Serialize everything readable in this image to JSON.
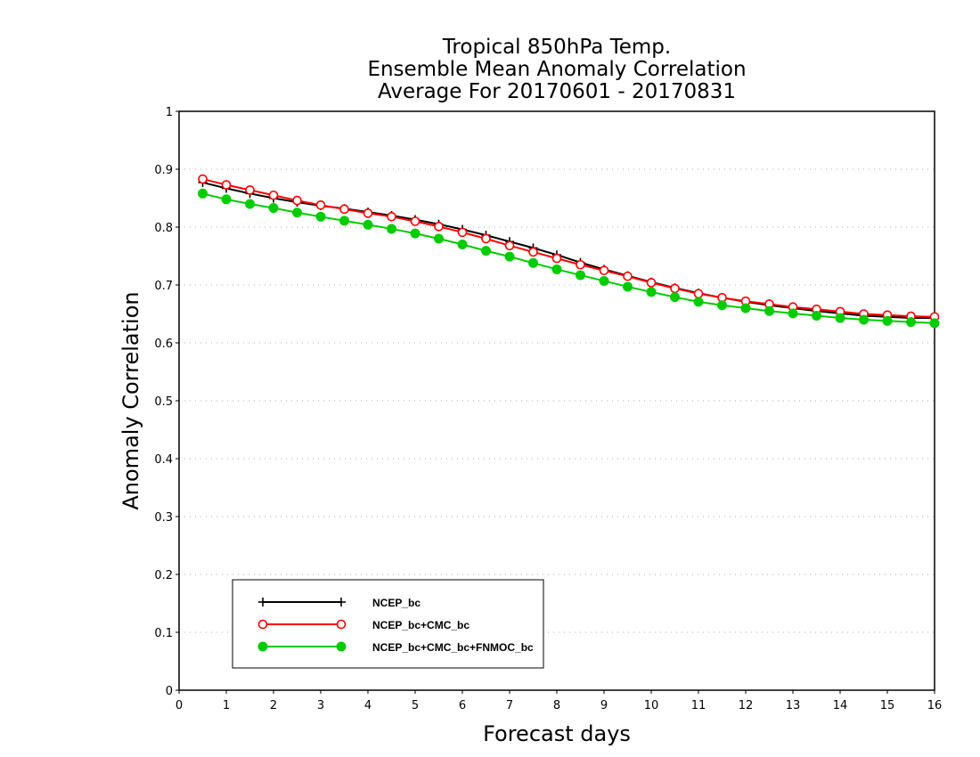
{
  "chart_data": {
    "type": "line",
    "title": [
      "Tropical 850hPa Temp.",
      "Ensemble Mean Anomaly Correlation",
      "Average For 20170601 - 20170831"
    ],
    "xlabel": "Forecast days",
    "ylabel": "Anomaly Correlation",
    "xlim": [
      0,
      16
    ],
    "ylim": [
      0,
      1
    ],
    "xticks": [
      "0",
      "1",
      "2",
      "3",
      "4",
      "5",
      "6",
      "7",
      "8",
      "9",
      "10",
      "11",
      "12",
      "13",
      "14",
      "15",
      "16"
    ],
    "yticks": [
      "0",
      "0.1",
      "0.2",
      "0.3",
      "0.4",
      "0.5",
      "0.6",
      "0.7",
      "0.8",
      "0.9",
      "1"
    ],
    "grid": "horizontal dotted",
    "legend_position": "bottom-left",
    "x": [
      0.5,
      1,
      1.5,
      2,
      2.5,
      3,
      3.5,
      4,
      4.5,
      5,
      5.5,
      6,
      6.5,
      7,
      7.5,
      8,
      8.5,
      9,
      9.5,
      10,
      10.5,
      11,
      11.5,
      12,
      12.5,
      13,
      13.5,
      14,
      14.5,
      15,
      15.5,
      16
    ],
    "series": [
      {
        "name": "NCEP_bc",
        "color": "#000000",
        "marker": "plus",
        "values": [
          0.877,
          0.867,
          0.858,
          0.85,
          0.843,
          0.837,
          0.832,
          0.826,
          0.82,
          0.813,
          0.805,
          0.796,
          0.786,
          0.775,
          0.764,
          0.752,
          0.739,
          0.727,
          0.716,
          0.705,
          0.695,
          0.686,
          0.678,
          0.671,
          0.665,
          0.66,
          0.655,
          0.651,
          0.647,
          0.645,
          0.643,
          0.643
        ]
      },
      {
        "name": "NCEP_bc+CMC_bc",
        "color": "#ff0000",
        "marker": "open-circle",
        "values": [
          0.883,
          0.873,
          0.864,
          0.855,
          0.846,
          0.838,
          0.831,
          0.824,
          0.818,
          0.81,
          0.801,
          0.791,
          0.78,
          0.768,
          0.757,
          0.746,
          0.735,
          0.725,
          0.715,
          0.704,
          0.694,
          0.685,
          0.678,
          0.672,
          0.667,
          0.662,
          0.658,
          0.654,
          0.65,
          0.648,
          0.646,
          0.645
        ]
      },
      {
        "name": "NCEP_bc+CMC_bc+FNMOC_bc",
        "color": "#00cc00",
        "marker": "filled-circle",
        "values": [
          0.858,
          0.848,
          0.84,
          0.833,
          0.825,
          0.818,
          0.811,
          0.804,
          0.797,
          0.789,
          0.78,
          0.77,
          0.759,
          0.749,
          0.738,
          0.727,
          0.717,
          0.707,
          0.697,
          0.688,
          0.679,
          0.671,
          0.665,
          0.66,
          0.655,
          0.651,
          0.647,
          0.643,
          0.64,
          0.638,
          0.636,
          0.634
        ]
      }
    ]
  }
}
